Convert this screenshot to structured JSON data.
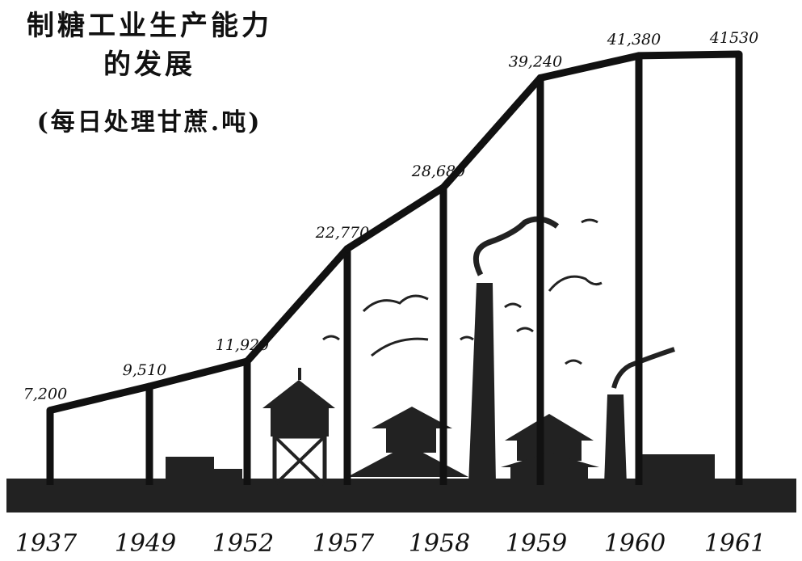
{
  "chart_data": {
    "type": "line",
    "title": "制糖工业生产能力的发展",
    "unit_label": "(每日处理甘蔗.吨)",
    "categories": [
      "1937",
      "1949",
      "1952",
      "1957",
      "1958",
      "1959",
      "1960",
      "1961"
    ],
    "values": [
      7200,
      9510,
      11920,
      22770,
      28680,
      39240,
      41380,
      41530
    ],
    "value_labels": [
      "7,200",
      "9,510",
      "11,920",
      "22,770",
      "28,680",
      "39,240",
      "41,380",
      "41530"
    ],
    "ylim": [
      0,
      45000
    ],
    "grid": false,
    "legend": "none",
    "colors": {
      "line": "#111111",
      "ground": "#222222",
      "background": "#ffffff"
    }
  }
}
